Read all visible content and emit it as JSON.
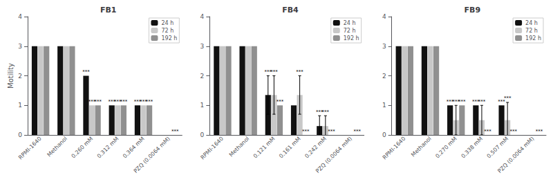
{
  "chart_data": [
    {
      "type": "bar",
      "title": "FB1",
      "ylabel": "Motility",
      "categories": [
        "RPMI-1640",
        "Methanol",
        "0.260 mM",
        "0.312 mM",
        "0.364 mM",
        "PZQ (0.0064 mM)"
      ],
      "series": [
        {
          "name": "24 h",
          "color": "#111111",
          "values": [
            3.0,
            3.0,
            2.0,
            1.0,
            1.0,
            0.0
          ],
          "errors": [
            0.0,
            0.0,
            0.0,
            0.0,
            0.0,
            0.0
          ],
          "stars": [
            null,
            null,
            "***",
            "***",
            "***",
            null
          ]
        },
        {
          "name": "72 h",
          "color": "#c8c8c8",
          "values": [
            3.0,
            3.0,
            1.0,
            1.0,
            1.0,
            0.0
          ],
          "errors": [
            0.0,
            0.0,
            0.0,
            0.0,
            0.0,
            0.0
          ],
          "stars": [
            null,
            null,
            "***",
            "***",
            "***",
            null
          ]
        },
        {
          "name": "192 h",
          "color": "#909090",
          "values": [
            3.0,
            3.0,
            1.0,
            1.0,
            1.0,
            0.0
          ],
          "errors": [
            0.0,
            0.0,
            0.0,
            0.0,
            0.0,
            0.0
          ],
          "stars": [
            null,
            null,
            "***",
            "***",
            "***",
            "***"
          ]
        }
      ],
      "ylim": [
        0,
        4
      ],
      "yticks": [
        0,
        1,
        2,
        3,
        4
      ],
      "legend": "upper right",
      "grid": false
    },
    {
      "type": "bar",
      "title": "FB4",
      "categories": [
        "RPMI-1640",
        "Methanol",
        "0.121 mM",
        "0.161 mM",
        "0.242 mM",
        "PZQ (0.0064 mM)"
      ],
      "series": [
        {
          "name": "24 h",
          "color": "#111111",
          "values": [
            3.0,
            3.0,
            1.35,
            1.0,
            0.3,
            0.0
          ],
          "errors": [
            0.0,
            0.0,
            0.65,
            0.0,
            0.35,
            0.0
          ],
          "stars": [
            null,
            null,
            "***",
            null,
            "***",
            null
          ]
        },
        {
          "name": "72 h",
          "color": "#c8c8c8",
          "values": [
            3.0,
            3.0,
            1.35,
            1.35,
            0.3,
            0.0
          ],
          "errors": [
            0.0,
            0.0,
            0.65,
            0.65,
            0.35,
            0.0
          ],
          "stars": [
            null,
            null,
            "***",
            "***",
            "***",
            null
          ]
        },
        {
          "name": "192 h",
          "color": "#909090",
          "values": [
            3.0,
            3.0,
            1.0,
            0.0,
            0.0,
            0.0
          ],
          "errors": [
            0.0,
            0.0,
            0.0,
            0.0,
            0.0,
            0.0
          ],
          "stars": [
            null,
            null,
            "***",
            "***",
            "***",
            "***"
          ]
        }
      ],
      "ylim": [
        0,
        4
      ],
      "yticks": [
        0,
        1,
        2,
        3,
        4
      ],
      "legend": "upper right",
      "grid": false
    },
    {
      "type": "bar",
      "title": "FB9",
      "categories": [
        "RPMI-1640",
        "Methanol",
        "0.270 mM",
        "0.338 mM",
        "0.507 mM",
        "PZQ (0.0064 mM)"
      ],
      "series": [
        {
          "name": "24 h",
          "color": "#111111",
          "values": [
            3.0,
            3.0,
            1.0,
            1.0,
            1.0,
            0.0
          ],
          "errors": [
            0.0,
            0.0,
            0.0,
            0.0,
            0.0,
            0.0
          ],
          "stars": [
            null,
            null,
            "***",
            "***",
            "***",
            null
          ]
        },
        {
          "name": "72 h",
          "color": "#c8c8c8",
          "values": [
            3.0,
            3.0,
            0.5,
            0.5,
            0.5,
            0.0
          ],
          "errors": [
            0.0,
            0.0,
            0.5,
            0.5,
            0.6,
            0.0
          ],
          "stars": [
            null,
            null,
            "***",
            "***",
            "***",
            null
          ]
        },
        {
          "name": "192 h",
          "color": "#909090",
          "values": [
            3.0,
            3.0,
            1.0,
            0.0,
            0.0,
            0.0
          ],
          "errors": [
            0.0,
            0.0,
            0.0,
            0.0,
            0.0,
            0.0
          ],
          "stars": [
            null,
            null,
            "***",
            "***",
            "***",
            "***"
          ]
        }
      ],
      "ylim": [
        0,
        4
      ],
      "yticks": [
        0,
        1,
        2,
        3,
        4
      ],
      "legend": "upper right",
      "grid": false
    }
  ]
}
